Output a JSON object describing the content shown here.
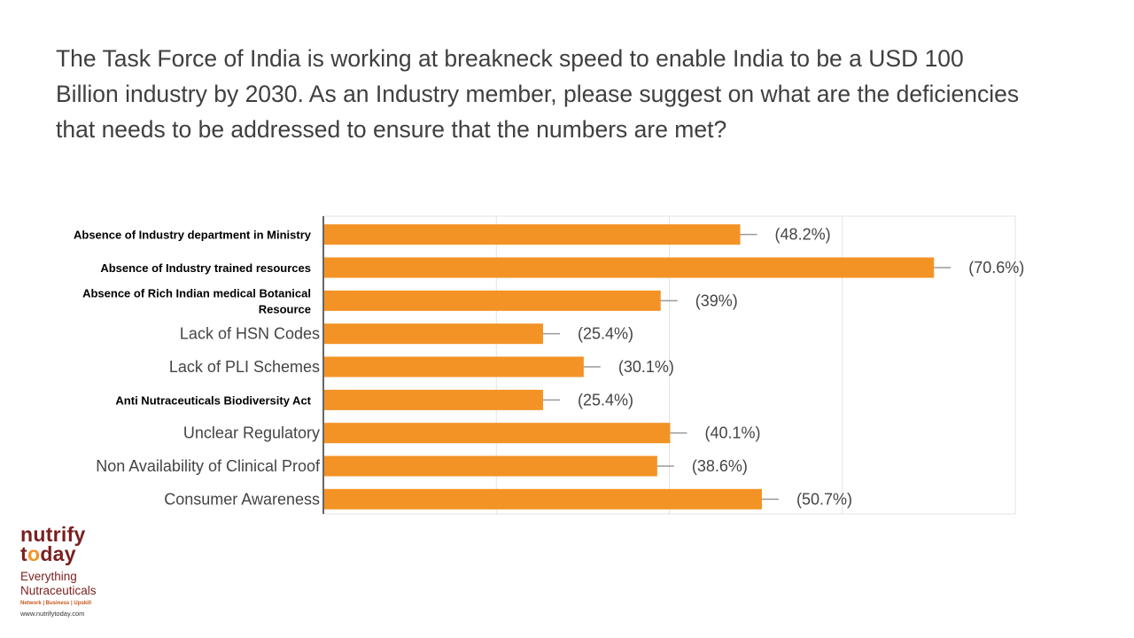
{
  "question": "The Task Force of India is working at breakneck speed to enable India to be a USD 100 Billion industry by 2030. As an Industry member, please suggest on what are the deficiencies that needs to be addressed to ensure that the numbers are met?",
  "chart_data": {
    "type": "bar",
    "orientation": "horizontal",
    "title": "",
    "xlabel": "",
    "ylabel": "",
    "xlim": [
      0,
      80
    ],
    "grid": true,
    "bar_color": "#f39325",
    "categories": [
      "Absence of Industry department in Ministry",
      "Absence of Industry trained resources",
      "Absence of Rich Indian medical Botanical Resource",
      "Lack of HSN Codes",
      "Lack of PLI Schemes",
      "Anti Nutraceuticals Biodiversity Act",
      "Unclear Regulatory",
      "Non Availability of Clinical Proof",
      "Consumer Awareness"
    ],
    "values": [
      48.2,
      70.6,
      39,
      25.4,
      30.1,
      25.4,
      40.1,
      38.6,
      50.7
    ],
    "data_labels": [
      "(48.2%)",
      "(70.6%)",
      "(39%)",
      "(25.4%)",
      "(30.1%)",
      "(25.4%)",
      "(40.1%)",
      "(38.6%)",
      "(50.7%)"
    ],
    "label_style": [
      "bold",
      "bold",
      "bold",
      "normal",
      "normal",
      "bold",
      "normal",
      "normal",
      "normal"
    ]
  },
  "logo": {
    "line1": "nutrify",
    "line2_start": "t",
    "line2_dot": "o",
    "line2_end": "day",
    "tagline1": "Everything",
    "tagline2": "Nutraceuticals",
    "small": "Network | Business | Upskill",
    "url": "www.nutrifytoday.com"
  }
}
